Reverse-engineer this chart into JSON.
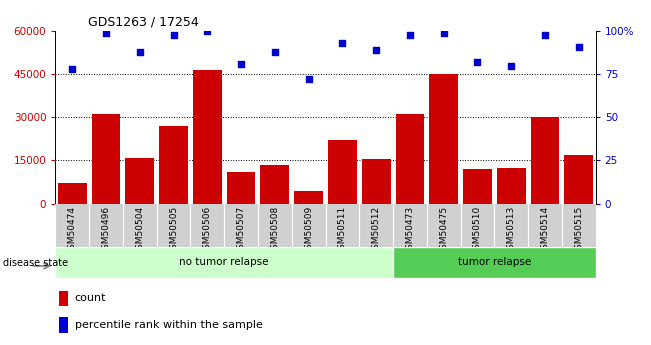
{
  "title": "GDS1263 / 17254",
  "categories": [
    "GSM50474",
    "GSM50496",
    "GSM50504",
    "GSM50505",
    "GSM50506",
    "GSM50507",
    "GSM50508",
    "GSM50509",
    "GSM50511",
    "GSM50512",
    "GSM50473",
    "GSM50475",
    "GSM50510",
    "GSM50513",
    "GSM50514",
    "GSM50515"
  ],
  "counts": [
    7000,
    31000,
    16000,
    27000,
    46500,
    11000,
    13500,
    4500,
    22000,
    15500,
    31000,
    45000,
    12000,
    12500,
    30000,
    17000
  ],
  "percentiles": [
    78,
    99,
    88,
    98,
    100,
    81,
    88,
    72,
    93,
    89,
    98,
    99,
    82,
    80,
    98,
    91
  ],
  "bar_color": "#cc0000",
  "dot_color": "#0000cc",
  "left_axis_color": "#cc0000",
  "right_axis_color": "#0000cc",
  "ylim_left": [
    0,
    60000
  ],
  "ylim_right": [
    0,
    100
  ],
  "yticks_left": [
    0,
    15000,
    30000,
    45000,
    60000
  ],
  "ytick_labels_left": [
    "0",
    "15000",
    "30000",
    "45000",
    "60000"
  ],
  "yticks_right": [
    0,
    25,
    50,
    75,
    100
  ],
  "ytick_labels_right": [
    "0",
    "25",
    "50",
    "75",
    "100%"
  ],
  "no_tumor_count": 10,
  "tumor_count": 6,
  "no_tumor_label": "no tumor relapse",
  "tumor_label": "tumor relapse",
  "disease_state_label": "disease state",
  "legend_count_label": "count",
  "legend_percentile_label": "percentile rank within the sample",
  "bg_color": "#ffffff",
  "xtick_bg_color": "#d0d0d0",
  "no_tumor_bg": "#ccffcc",
  "tumor_bg": "#55cc55",
  "grid_color": "#000000",
  "bar_width": 0.85
}
